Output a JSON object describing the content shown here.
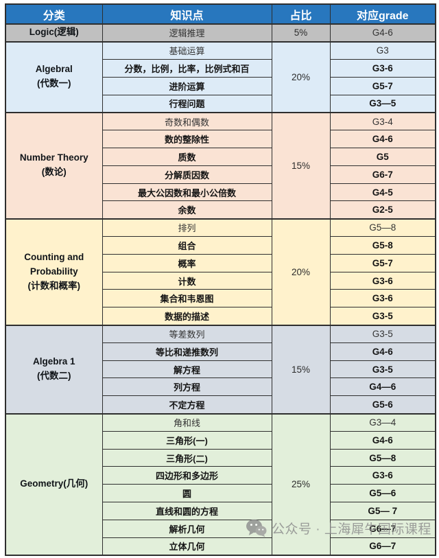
{
  "table": {
    "headers": [
      "分类",
      "知识点",
      "占比",
      "对应grade"
    ],
    "header_bg": "#2877BE",
    "border_color": "#2e2e2e",
    "sections": [
      {
        "category_lines": [
          "Logic(逻辑)"
        ],
        "percent": "5%",
        "bg": "#C0C0C0",
        "rows": [
          {
            "topic": "逻辑推理",
            "grade": "G4-6"
          }
        ]
      },
      {
        "category_lines": [
          "Algebral",
          "(代数一)"
        ],
        "percent": "20%",
        "bg": "#DDEBF7",
        "rows": [
          {
            "topic": "基础运算",
            "grade": "G3"
          },
          {
            "topic": "分数，比例，比率，比例式和百",
            "grade": "G3-6"
          },
          {
            "topic": "进阶运算",
            "grade": "G5-7"
          },
          {
            "topic": "行程问题",
            "grade": "G3—5"
          }
        ]
      },
      {
        "category_lines": [
          "Number Theory",
          "(数论)"
        ],
        "percent": "15%",
        "bg": "#FAE3D4",
        "rows": [
          {
            "topic": "奇数和偶数",
            "grade": "G3-4"
          },
          {
            "topic": "数的整除性",
            "grade": "G4-6"
          },
          {
            "topic": "质数",
            "grade": "G5"
          },
          {
            "topic": "分解质因数",
            "grade": "G6-7"
          },
          {
            "topic": "最大公因数和最小公倍数",
            "grade": "G4-5"
          },
          {
            "topic": "余数",
            "grade": "G2-5"
          }
        ]
      },
      {
        "category_lines": [
          "Counting and",
          "Probability",
          "(计数和概率)"
        ],
        "percent": "20%",
        "bg": "#FFF2CC",
        "rows": [
          {
            "topic": "排列",
            "grade": "G5—8"
          },
          {
            "topic": "组合",
            "grade": "G5-8"
          },
          {
            "topic": "概率",
            "grade": "G5-7"
          },
          {
            "topic": "计数",
            "grade": "G3-6"
          },
          {
            "topic": "集合和韦恩图",
            "grade": "G3-6"
          },
          {
            "topic": "数据的描述",
            "grade": "G3-5"
          }
        ]
      },
      {
        "category_lines": [
          "Algebra 1",
          "(代数二)"
        ],
        "percent": "15%",
        "bg": "#D6DCE4",
        "rows": [
          {
            "topic": "等差数列",
            "grade": "G3-5"
          },
          {
            "topic": "等比和递推数列",
            "grade": "G4-6"
          },
          {
            "topic": "解方程",
            "grade": "G3-5"
          },
          {
            "topic": "列方程",
            "grade": "G4—6"
          },
          {
            "topic": "不定方程",
            "grade": "G5-6"
          }
        ]
      },
      {
        "category_lines": [
          "Geometry(几何)"
        ],
        "percent": "25%",
        "bg": "#E2EFDA",
        "rows": [
          {
            "topic": "角和线",
            "grade": "G3—4"
          },
          {
            "topic": "三角形(一)",
            "grade": "G4-6"
          },
          {
            "topic": "三角形(二)",
            "grade": "G5—8"
          },
          {
            "topic": "四边形和多边形",
            "grade": "G3-6"
          },
          {
            "topic": "圆",
            "grade": "G5—6"
          },
          {
            "topic": "直线和圆的方程",
            "grade": "G5— 7"
          },
          {
            "topic": "解析几何",
            "grade": "G6—7"
          },
          {
            "topic": "立体几何",
            "grade": "G6—7"
          }
        ]
      }
    ]
  },
  "watermark": {
    "icon": "wechat-icon",
    "text": "公众号 · 上海犀牛国际课程"
  }
}
